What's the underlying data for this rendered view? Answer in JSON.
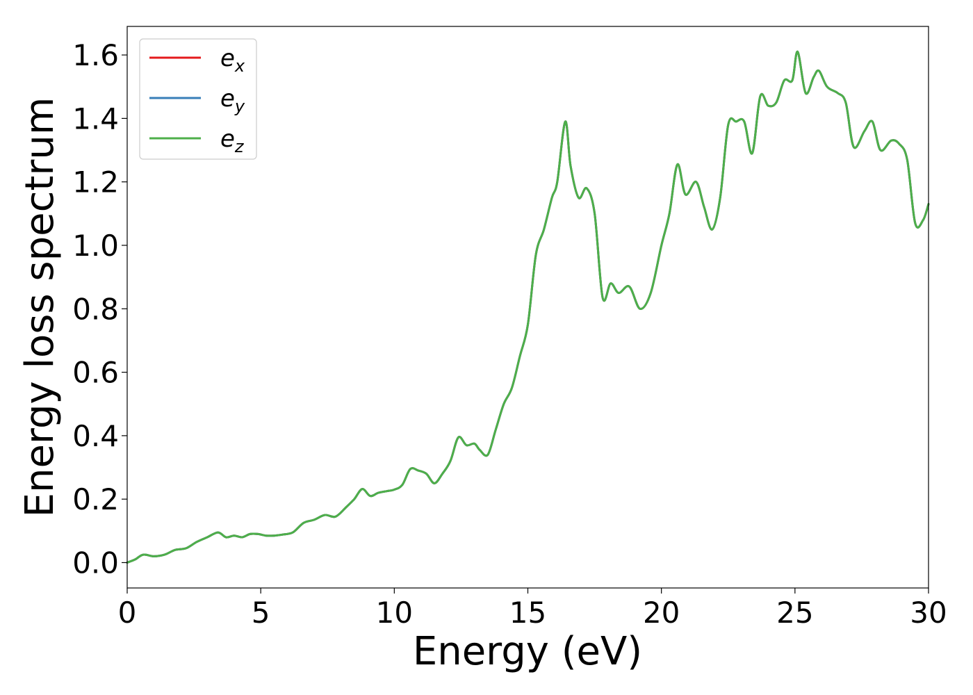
{
  "chart_data": {
    "type": "line",
    "xlabel": "Energy (eV)",
    "ylabel": "Energy loss spectrum",
    "xlim": [
      0,
      30
    ],
    "ylim": [
      -0.08,
      1.69
    ],
    "xticks": [
      0,
      5,
      10,
      15,
      20,
      25,
      30
    ],
    "yticks": [
      0.0,
      0.2,
      0.4,
      0.6,
      0.8,
      1.0,
      1.2,
      1.4,
      1.6
    ],
    "xtick_labels": [
      "0",
      "5",
      "10",
      "15",
      "20",
      "25",
      "30"
    ],
    "ytick_labels": [
      "0.0",
      "0.2",
      "0.4",
      "0.6",
      "0.8",
      "1.0",
      "1.2",
      "1.4",
      "1.6"
    ],
    "grid": false,
    "legend_position": "top-left",
    "x": [
      0,
      0.3,
      0.6,
      1.0,
      1.4,
      1.8,
      2.2,
      2.6,
      3.0,
      3.4,
      3.7,
      4.0,
      4.3,
      4.6,
      4.9,
      5.2,
      5.5,
      5.8,
      6.2,
      6.6,
      7.0,
      7.4,
      7.8,
      8.2,
      8.5,
      8.8,
      9.1,
      9.4,
      9.7,
      10.0,
      10.3,
      10.6,
      10.9,
      11.2,
      11.5,
      11.8,
      12.1,
      12.4,
      12.7,
      13.0,
      13.2,
      13.5,
      13.8,
      14.1,
      14.4,
      14.7,
      15.0,
      15.3,
      15.6,
      15.9,
      16.1,
      16.4,
      16.6,
      16.9,
      17.2,
      17.5,
      17.8,
      18.1,
      18.4,
      18.8,
      19.2,
      19.6,
      20.0,
      20.3,
      20.6,
      20.9,
      21.3,
      21.6,
      21.9,
      22.2,
      22.5,
      22.8,
      23.1,
      23.4,
      23.7,
      24.0,
      24.3,
      24.6,
      24.9,
      25.1,
      25.4,
      25.7,
      25.9,
      26.2,
      26.6,
      26.9,
      27.2,
      27.6,
      27.9,
      28.2,
      28.6,
      28.9,
      29.2,
      29.5,
      29.8,
      30.0
    ],
    "series": [
      {
        "name": "e_x",
        "label_base": "e",
        "label_sub": "x",
        "color": "#e41a1c",
        "values": [
          0.0,
          0.01,
          0.025,
          0.02,
          0.025,
          0.04,
          0.045,
          0.065,
          0.08,
          0.095,
          0.08,
          0.085,
          0.08,
          0.09,
          0.09,
          0.085,
          0.085,
          0.088,
          0.095,
          0.125,
          0.135,
          0.15,
          0.145,
          0.175,
          0.2,
          0.232,
          0.21,
          0.22,
          0.225,
          0.23,
          0.245,
          0.295,
          0.29,
          0.28,
          0.25,
          0.28,
          0.32,
          0.395,
          0.37,
          0.375,
          0.355,
          0.34,
          0.42,
          0.5,
          0.55,
          0.65,
          0.75,
          0.97,
          1.05,
          1.15,
          1.2,
          1.39,
          1.25,
          1.15,
          1.18,
          1.1,
          0.835,
          0.88,
          0.85,
          0.87,
          0.8,
          0.85,
          1.0,
          1.1,
          1.255,
          1.16,
          1.2,
          1.12,
          1.05,
          1.15,
          1.38,
          1.39,
          1.39,
          1.29,
          1.47,
          1.44,
          1.45,
          1.52,
          1.52,
          1.61,
          1.48,
          1.53,
          1.55,
          1.5,
          1.48,
          1.45,
          1.31,
          1.36,
          1.39,
          1.3,
          1.33,
          1.32,
          1.27,
          1.07,
          1.08,
          1.13
        ]
      },
      {
        "name": "e_y",
        "label_base": "e",
        "label_sub": "y",
        "color": "#377eb8",
        "values": [
          0.0,
          0.01,
          0.025,
          0.02,
          0.025,
          0.04,
          0.045,
          0.065,
          0.08,
          0.095,
          0.08,
          0.085,
          0.08,
          0.09,
          0.09,
          0.085,
          0.085,
          0.088,
          0.095,
          0.125,
          0.135,
          0.15,
          0.145,
          0.175,
          0.2,
          0.232,
          0.21,
          0.22,
          0.225,
          0.23,
          0.245,
          0.295,
          0.29,
          0.28,
          0.25,
          0.28,
          0.32,
          0.395,
          0.37,
          0.375,
          0.355,
          0.34,
          0.42,
          0.5,
          0.55,
          0.65,
          0.75,
          0.97,
          1.05,
          1.15,
          1.2,
          1.39,
          1.25,
          1.15,
          1.18,
          1.1,
          0.835,
          0.88,
          0.85,
          0.87,
          0.8,
          0.85,
          1.0,
          1.1,
          1.255,
          1.16,
          1.2,
          1.12,
          1.05,
          1.15,
          1.38,
          1.39,
          1.39,
          1.29,
          1.47,
          1.44,
          1.45,
          1.52,
          1.52,
          1.61,
          1.48,
          1.53,
          1.55,
          1.5,
          1.48,
          1.45,
          1.31,
          1.36,
          1.39,
          1.3,
          1.33,
          1.32,
          1.27,
          1.07,
          1.08,
          1.13
        ]
      },
      {
        "name": "e_z",
        "label_base": "e",
        "label_sub": "z",
        "color": "#4daf4a",
        "values": [
          0.0,
          0.01,
          0.025,
          0.02,
          0.025,
          0.04,
          0.045,
          0.065,
          0.08,
          0.095,
          0.08,
          0.085,
          0.08,
          0.09,
          0.09,
          0.085,
          0.085,
          0.088,
          0.095,
          0.125,
          0.135,
          0.15,
          0.145,
          0.175,
          0.2,
          0.232,
          0.21,
          0.22,
          0.225,
          0.23,
          0.245,
          0.295,
          0.29,
          0.28,
          0.25,
          0.28,
          0.32,
          0.395,
          0.37,
          0.375,
          0.355,
          0.34,
          0.42,
          0.5,
          0.55,
          0.65,
          0.75,
          0.97,
          1.05,
          1.15,
          1.2,
          1.39,
          1.25,
          1.15,
          1.18,
          1.1,
          0.835,
          0.88,
          0.85,
          0.87,
          0.8,
          0.85,
          1.0,
          1.1,
          1.255,
          1.16,
          1.2,
          1.12,
          1.05,
          1.15,
          1.38,
          1.39,
          1.39,
          1.29,
          1.47,
          1.44,
          1.45,
          1.52,
          1.52,
          1.61,
          1.48,
          1.53,
          1.55,
          1.5,
          1.48,
          1.45,
          1.31,
          1.36,
          1.39,
          1.3,
          1.33,
          1.32,
          1.27,
          1.07,
          1.08,
          1.13
        ]
      }
    ]
  }
}
